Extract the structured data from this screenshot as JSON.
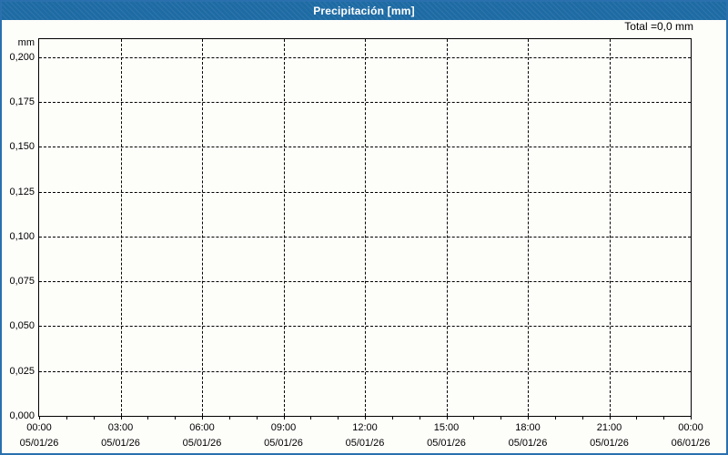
{
  "window": {
    "title": "Precipitación [mm]",
    "total_label": "Total =0,0 mm"
  },
  "colors": {
    "titlebar_bg": "#1e6ba4",
    "window_border": "#2a70ae",
    "background": "#fdfdfa",
    "title_text": "#ffffff",
    "axis_and_grid": "#000000",
    "label_text": "#000000"
  },
  "chart_data": {
    "type": "bar",
    "title": "Precipitación [mm]",
    "unit_label": "mm",
    "total_annotation": "Total =0,0 mm",
    "total_mm": 0.0,
    "ylabel": "mm",
    "ylim": [
      0,
      0.21
    ],
    "grid": "dashed",
    "legend": "none",
    "y_ticks": [
      {
        "value": 0.2,
        "label": "0,200"
      },
      {
        "value": 0.175,
        "label": "0,175"
      },
      {
        "value": 0.15,
        "label": "0,150"
      },
      {
        "value": 0.125,
        "label": "0,125"
      },
      {
        "value": 0.1,
        "label": "0,100"
      },
      {
        "value": 0.075,
        "label": "0,075"
      },
      {
        "value": 0.05,
        "label": "0,050"
      },
      {
        "value": 0.025,
        "label": "0,025"
      },
      {
        "value": 0.0,
        "label": "0,000"
      }
    ],
    "x_range_hours": [
      0,
      24
    ],
    "x_major_step_hours": 3,
    "x_minor_step_hours": 1,
    "x_ticks": [
      {
        "hour": 0,
        "time": "00:00",
        "date": "05/01/26"
      },
      {
        "hour": 3,
        "time": "03:00",
        "date": "05/01/26"
      },
      {
        "hour": 6,
        "time": "06:00",
        "date": "05/01/26"
      },
      {
        "hour": 9,
        "time": "09:00",
        "date": "05/01/26"
      },
      {
        "hour": 12,
        "time": "12:00",
        "date": "05/01/26"
      },
      {
        "hour": 15,
        "time": "15:00",
        "date": "05/01/26"
      },
      {
        "hour": 18,
        "time": "18:00",
        "date": "05/01/26"
      },
      {
        "hour": 21,
        "time": "21:00",
        "date": "05/01/26"
      },
      {
        "hour": 24,
        "time": "00:00",
        "date": "06/01/26"
      }
    ],
    "series": [
      {
        "name": "Precipitación",
        "values": [],
        "total": 0.0
      }
    ]
  }
}
